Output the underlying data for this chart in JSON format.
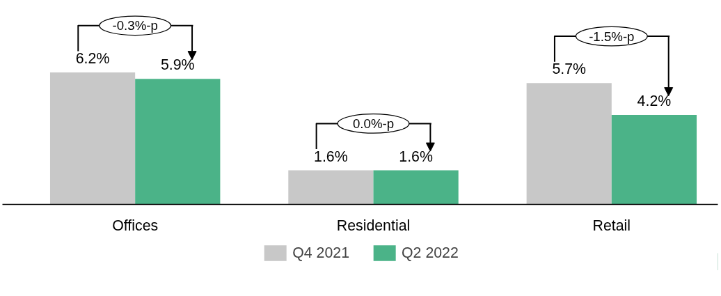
{
  "chart_data": {
    "type": "bar",
    "categories": [
      "Offices",
      "Residential",
      "Retail"
    ],
    "series": [
      {
        "name": "Q4 2021",
        "color": "#c8c8c8",
        "values": [
          6.2,
          1.6,
          5.7
        ],
        "value_labels": [
          "6.2%",
          "1.6%",
          "5.7%"
        ]
      },
      {
        "name": "Q2 2022",
        "color": "#4bb388",
        "values": [
          5.9,
          1.6,
          4.2
        ],
        "value_labels": [
          "5.9%",
          "1.6%",
          "4.2%"
        ]
      }
    ],
    "tick_labels": "x",
    "legend": "bottom",
    "annotations": [
      "-0.3%-p",
      "0.0%-p",
      "-1.5%-p"
    ]
  }
}
